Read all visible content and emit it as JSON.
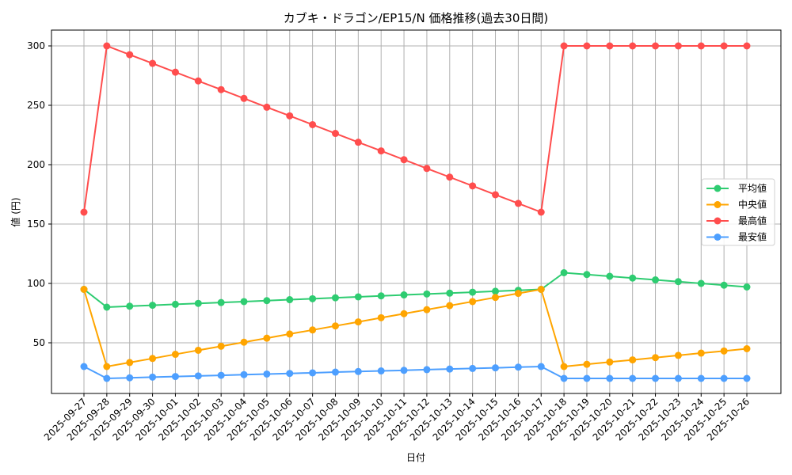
{
  "chart_data": {
    "type": "line",
    "title": "カブキ・ドラゴン/EP15/N 価格推移(過去30日間)",
    "xlabel": "日付",
    "ylabel": "値 (円)",
    "ylim": [
      13,
      313
    ],
    "yticks": [
      50,
      100,
      150,
      200,
      250,
      300
    ],
    "grid": true,
    "legend_position": "center right",
    "categories": [
      "2025-09-27",
      "2025-09-28",
      "2025-09-29",
      "2025-09-30",
      "2025-10-01",
      "2025-10-02",
      "2025-10-03",
      "2025-10-04",
      "2025-10-05",
      "2025-10-06",
      "2025-10-07",
      "2025-10-08",
      "2025-10-09",
      "2025-10-10",
      "2025-10-11",
      "2025-10-12",
      "2025-10-13",
      "2025-10-14",
      "2025-10-15",
      "2025-10-16",
      "2025-10-17",
      "2025-10-18",
      "2025-10-19",
      "2025-10-20",
      "2025-10-21",
      "2025-10-22",
      "2025-10-23",
      "2025-10-24",
      "2025-10-25",
      "2025-10-26"
    ],
    "series": [
      {
        "name": "平均値",
        "color": "#2ecc71",
        "values": [
          95,
          80,
          80.8,
          81.6,
          82.4,
          83.2,
          83.9,
          84.7,
          85.5,
          86.3,
          87.1,
          87.9,
          88.7,
          89.5,
          90.3,
          91.1,
          91.8,
          92.6,
          93.4,
          94.2,
          95,
          109,
          107.5,
          106,
          104.5,
          103,
          101.5,
          100,
          98.5,
          97
        ]
      },
      {
        "name": "中央値",
        "color": "#ffa500",
        "values": [
          95,
          30,
          33.4,
          36.8,
          40.3,
          43.7,
          47.1,
          50.5,
          53.9,
          57.4,
          60.8,
          64.2,
          67.6,
          71.1,
          74.5,
          77.9,
          81.3,
          84.7,
          88.2,
          91.6,
          95,
          30,
          31.9,
          33.8,
          35.6,
          37.5,
          39.4,
          41.3,
          43.1,
          45
        ]
      },
      {
        "name": "最高値",
        "color": "#ff4d4d",
        "values": [
          160,
          300,
          292.6,
          285.3,
          277.9,
          270.5,
          263.2,
          255.8,
          248.4,
          241.1,
          233.7,
          226.3,
          218.9,
          211.6,
          204.2,
          196.8,
          189.5,
          182.1,
          174.7,
          167.4,
          160,
          300,
          300,
          300,
          300,
          300,
          300,
          300,
          300,
          300
        ]
      },
      {
        "name": "最安値",
        "color": "#4d9fff",
        "values": [
          30,
          20,
          20.5,
          21.1,
          21.6,
          22.1,
          22.6,
          23.2,
          23.7,
          24.2,
          24.7,
          25.3,
          25.8,
          26.3,
          26.8,
          27.4,
          27.9,
          28.4,
          28.9,
          29.5,
          30,
          20,
          20,
          20,
          20,
          20,
          20,
          20,
          20,
          20
        ]
      }
    ]
  }
}
